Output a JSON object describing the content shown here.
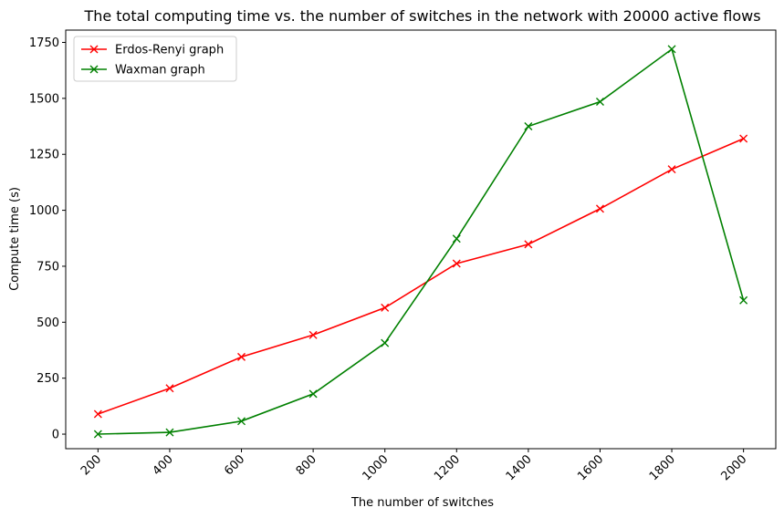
{
  "chart_data": {
    "type": "line",
    "title": "The total computing time vs. the number of switches in the network with 20000 active flows",
    "xlabel": "The number of switches",
    "ylabel": "Compute time (s)",
    "x": [
      200,
      400,
      600,
      800,
      1000,
      1200,
      1400,
      1600,
      1800,
      2000
    ],
    "x_tick_labels": [
      "200",
      "400",
      "600",
      "800",
      "1000",
      "1200",
      "1400",
      "1600",
      "1800",
      "2000"
    ],
    "x_tick_rotation_deg": 45,
    "yticks": [
      0,
      250,
      500,
      750,
      1000,
      1250,
      1500,
      1750
    ],
    "ylim": [
      -65,
      1805
    ],
    "xlim": [
      110,
      2090
    ],
    "grid": false,
    "legend_placement": "top-left",
    "series": [
      {
        "name": "Erdos-Renyi graph",
        "color": "#ff0000",
        "marker": "x",
        "values": [
          90,
          205,
          345,
          443,
          565,
          762,
          848,
          1007,
          1183,
          1320
        ]
      },
      {
        "name": "Waxman graph",
        "color": "#008000",
        "marker": "x",
        "values": [
          0,
          8,
          58,
          180,
          407,
          873,
          1375,
          1485,
          1720,
          598
        ]
      }
    ]
  }
}
